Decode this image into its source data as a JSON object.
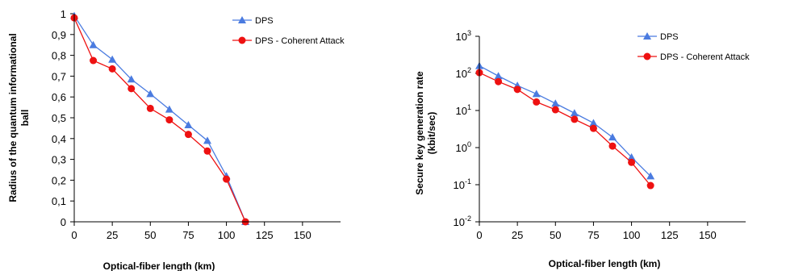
{
  "chart_data": [
    {
      "type": "line",
      "title": "",
      "xlabel": "Optical-fiber length (km)",
      "ylabel_lines": [
        "Radius of the quantum informational",
        "ball"
      ],
      "xlim": [
        0,
        175
      ],
      "ylim": [
        0,
        1
      ],
      "x_ticks": [
        "0",
        "25",
        "50",
        "75",
        "100",
        "125",
        "150"
      ],
      "y_ticks": [
        "0",
        "0,1",
        "0,2",
        "0,3",
        "0,4",
        "0,5",
        "0,6",
        "0,7",
        "0,8",
        "0,9",
        "1"
      ],
      "grid": false,
      "legend_position": "top-right",
      "series": [
        {
          "name": "DPS",
          "color": "#4a7be0",
          "marker": "triangle",
          "x": [
            0,
            12.5,
            25,
            37.5,
            50,
            62.5,
            75,
            87.5,
            100,
            112.5
          ],
          "y": [
            0.99,
            0.85,
            0.78,
            0.685,
            0.615,
            0.54,
            0.465,
            0.39,
            0.22,
            0
          ]
        },
        {
          "name": "DPS - Coherent Attack",
          "color": "#ee1111",
          "marker": "circle",
          "x": [
            0,
            12.5,
            25,
            37.5,
            50,
            62.5,
            75,
            87.5,
            100,
            112.5
          ],
          "y": [
            0.98,
            0.775,
            0.735,
            0.64,
            0.545,
            0.49,
            0.42,
            0.34,
            0.205,
            0
          ]
        }
      ]
    },
    {
      "type": "line",
      "title": "",
      "xlabel": "Optical-fiber length (km)",
      "ylabel_lines": [
        "Secure key generation rate",
        "(kbit/sec)"
      ],
      "xlim": [
        0,
        175
      ],
      "ylim": [
        0.01,
        1000
      ],
      "y_scale": "log",
      "x_ticks": [
        "0",
        "25",
        "50",
        "75",
        "100",
        "125",
        "150"
      ],
      "y_ticks": [
        {
          "base": "10",
          "exp": "3"
        },
        {
          "base": "10",
          "exp": "2"
        },
        {
          "base": "10",
          "exp": "1"
        },
        {
          "base": "10",
          "exp": "0"
        },
        {
          "base": "10",
          "exp": "-1"
        },
        {
          "base": "10",
          "exp": "-2"
        }
      ],
      "grid": false,
      "legend_position": "top-right",
      "series": [
        {
          "name": "DPS",
          "color": "#4a7be0",
          "marker": "triangle",
          "x": [
            0,
            12.5,
            25,
            37.5,
            50,
            62.5,
            75,
            87.5,
            100,
            112.5
          ],
          "y": [
            160,
            85,
            47,
            28,
            15.5,
            8.5,
            4.6,
            1.9,
            0.55,
            0.17
          ]
        },
        {
          "name": "DPS - Coherent Attack",
          "color": "#ee1111",
          "marker": "circle",
          "x": [
            0,
            12.5,
            25,
            37.5,
            50,
            62.5,
            75,
            87.5,
            100,
            112.5
          ],
          "y": [
            105,
            60,
            37,
            17,
            10.5,
            5.8,
            3.3,
            1.1,
            0.4,
            0.095
          ]
        }
      ]
    }
  ]
}
